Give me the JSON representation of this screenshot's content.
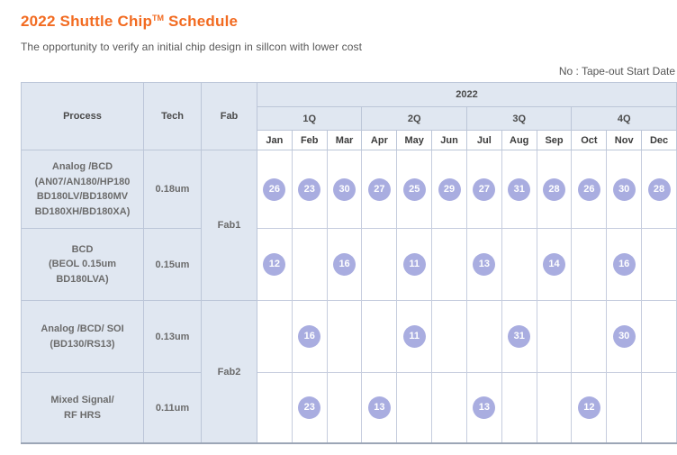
{
  "page": {
    "title_prefix": "2022 Shuttle Chip",
    "title_tm": "TM",
    "title_suffix": " Schedule",
    "subtitle": "The opportunity to verify an initial chip design in sillcon with lower cost",
    "note": "No : Tape-out Start Date"
  },
  "colors": {
    "accent_orange": "#f26b21",
    "header_bg": "#e0e7f1",
    "circle_purple": "#a9ade0",
    "border": "#bcc6d8"
  },
  "table": {
    "headers": {
      "process": "Process",
      "tech": "Tech",
      "fab": "Fab",
      "year": "2022",
      "quarters": [
        "1Q",
        "2Q",
        "3Q",
        "4Q"
      ],
      "months": [
        "Jan",
        "Feb",
        "Mar",
        "Apr",
        "May",
        "Jun",
        "Jul",
        "Aug",
        "Sep",
        "Oct",
        "Nov",
        "Dec"
      ]
    },
    "fabs": [
      "Fab1",
      "Fab2"
    ],
    "rows": [
      {
        "process": "Analog /BCD\n(AN07/AN180/HP180\nBD180LV/BD180MV\nBD180XH/BD180XA)",
        "tech": "0.18um",
        "values": [
          "26",
          "23",
          "30",
          "27",
          "25",
          "29",
          "27",
          "31",
          "28",
          "26",
          "30",
          "28"
        ]
      },
      {
        "process": "BCD\n(BEOL 0.15um\nBD180LVA)",
        "tech": "0.15um",
        "values": [
          "12",
          "",
          "16",
          "",
          "11",
          "",
          "13",
          "",
          "14",
          "",
          "16",
          ""
        ]
      },
      {
        "process": "Analog /BCD/ SOI\n(BD130/RS13)",
        "tech": "0.13um",
        "values": [
          "",
          "16",
          "",
          "",
          "11",
          "",
          "",
          "31",
          "",
          "",
          "30",
          ""
        ]
      },
      {
        "process": "Mixed Signal/\nRF HRS",
        "tech": "0.11um",
        "values": [
          "",
          "23",
          "",
          "13",
          "",
          "",
          "13",
          "",
          "",
          "12",
          "",
          ""
        ]
      }
    ]
  }
}
